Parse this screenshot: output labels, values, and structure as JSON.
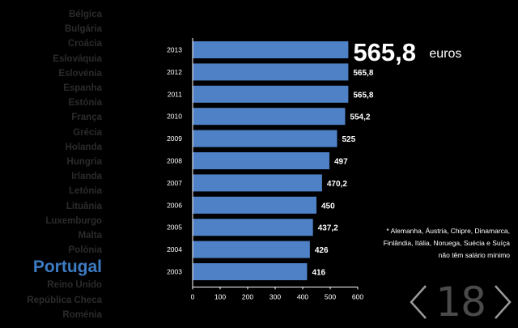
{
  "countries": {
    "items": [
      {
        "label": "Bélgica"
      },
      {
        "label": "Bulgária"
      },
      {
        "label": "Croácia"
      },
      {
        "label": "Eslováquia"
      },
      {
        "label": "Eslovénia"
      },
      {
        "label": "Espanha"
      },
      {
        "label": "Estónia"
      },
      {
        "label": "França"
      },
      {
        "label": "Grécia"
      },
      {
        "label": "Holanda"
      },
      {
        "label": "Hungria"
      },
      {
        "label": "Irlanda"
      },
      {
        "label": "Letónia"
      },
      {
        "label": "Lituânia"
      },
      {
        "label": "Luxemburgo"
      },
      {
        "label": "Malta"
      },
      {
        "label": "Polónia"
      },
      {
        "label": "Portugal",
        "selected": true
      },
      {
        "label": "Reino Unido"
      },
      {
        "label": "República Checa"
      },
      {
        "label": "Roménia"
      }
    ]
  },
  "chart_data": {
    "type": "bar",
    "orientation": "horizontal",
    "categories": [
      "2013",
      "2012",
      "2011",
      "2010",
      "2009",
      "2008",
      "2007",
      "2006",
      "2005",
      "2004",
      "2003"
    ],
    "values": [
      565.8,
      565.8,
      565.8,
      554.2,
      525,
      497,
      470.2,
      450,
      437.2,
      426,
      416
    ],
    "value_labels": [
      "",
      "565,8",
      "565,8",
      "554,2",
      "525",
      "497",
      "470,2",
      "450",
      "437,2",
      "426",
      "416"
    ],
    "headline": {
      "value": "565,8",
      "unit": "euros"
    },
    "xticks": [
      0,
      100,
      200,
      300,
      400,
      500,
      600
    ],
    "xlim": [
      0,
      600
    ],
    "bar_color": "#4f81c7",
    "grid": false
  },
  "footnote": {
    "lines": [
      "* Alemanha, Áustria, Chipre, Dinamarca,",
      "Finlândia, Itália, Noruega, Suécia e Suíça",
      "não têm salário mínimo"
    ]
  },
  "pager": {
    "page": "18",
    "prev_icon": "chevron-left-icon",
    "next_icon": "chevron-right-icon"
  }
}
